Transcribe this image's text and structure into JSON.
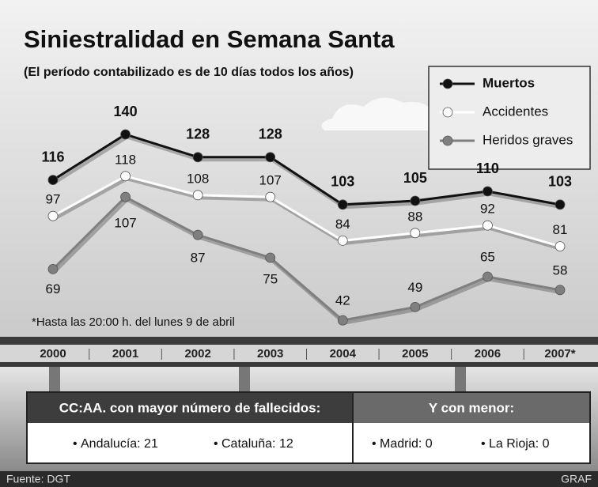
{
  "chart_data": {
    "type": "line",
    "title": "Siniestralidad en Semana Santa",
    "subtitle": "(El período contabilizado es de 10 días todos los años)",
    "note": "*Hasta las 20:00 h. del lunes 9 de abril",
    "categories": [
      "2000",
      "2001",
      "2002",
      "2003",
      "2004",
      "2005",
      "2006",
      "2007*"
    ],
    "series": [
      {
        "name": "Muertos",
        "color": "#111111",
        "values": [
          116,
          140,
          128,
          128,
          103,
          105,
          110,
          103
        ]
      },
      {
        "name": "Accidentes",
        "color": "#ffffff",
        "values": [
          97,
          118,
          108,
          107,
          84,
          88,
          92,
          81
        ]
      },
      {
        "name": "Heridos graves",
        "color": "#7f7f7f",
        "values": [
          69,
          107,
          87,
          75,
          42,
          49,
          65,
          58
        ]
      }
    ],
    "legend": "top-right"
  },
  "panel": {
    "most": {
      "header": "CC:AA. con mayor número de fallecidos:",
      "items": [
        "Andalucía: 21",
        "Cataluña: 12"
      ]
    },
    "least": {
      "header": "Y con menor:",
      "items": [
        "Madrid: 0",
        "La Rioja: 0"
      ]
    }
  },
  "footer": {
    "source": "Fuente: DGT",
    "agency": "GRAF"
  }
}
